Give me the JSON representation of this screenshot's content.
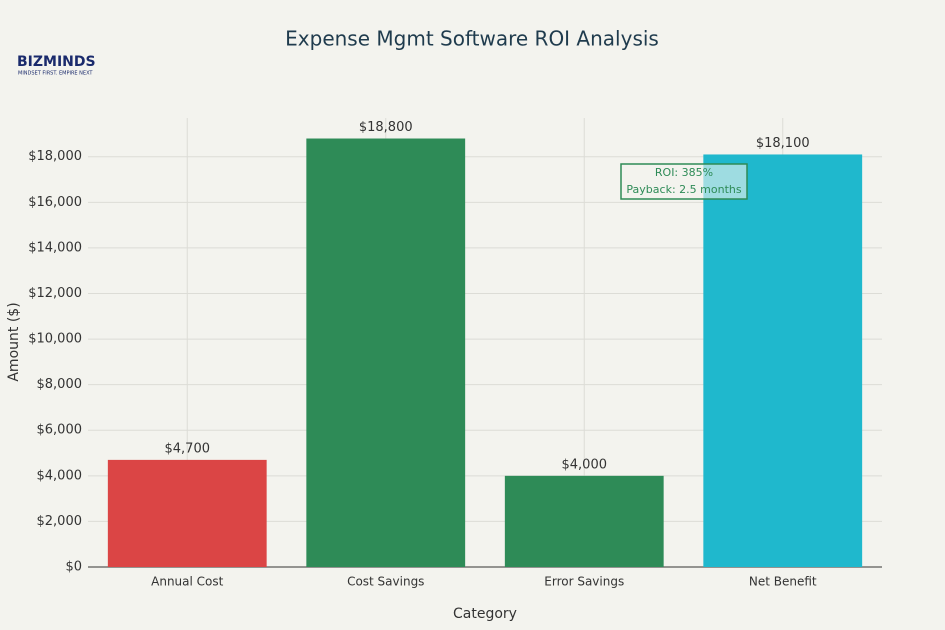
{
  "chart_data": {
    "type": "bar",
    "title": "Expense Mgmt Software ROI Analysis",
    "logo": {
      "name": "BIZMINDS",
      "tagline": "MINDSET FIRST. EMPIRE NEXT"
    },
    "categories": [
      "Annual Cost",
      "Cost Savings",
      "Error Savings",
      "Net Benefit"
    ],
    "values": [
      4700,
      18800,
      4000,
      18100
    ],
    "value_labels": [
      "$4,700",
      "$18,800",
      "$4,000",
      "$18,100"
    ],
    "colors": [
      "#db4545",
      "#2e8b57",
      "#2e8b57",
      "#1fb8cd"
    ],
    "xlabel": "Category",
    "ylabel": "Amount ($)",
    "ylim": [
      0,
      19700
    ],
    "yticks": [
      {
        "value": 0,
        "label": "$0"
      },
      {
        "value": 2000,
        "label": "$2,000"
      },
      {
        "value": 4000,
        "label": "$4,000"
      },
      {
        "value": 6000,
        "label": "$6,000"
      },
      {
        "value": 8000,
        "label": "$8,000"
      },
      {
        "value": 10000,
        "label": "$10,000"
      },
      {
        "value": 12000,
        "label": "$12,000"
      },
      {
        "value": 14000,
        "label": "$14,000"
      },
      {
        "value": 16000,
        "label": "$16,000"
      },
      {
        "value": 18000,
        "label": "$18,000"
      }
    ],
    "annotation": [
      "ROI: 385%",
      "Payback: 2.5 months"
    ],
    "grid": true
  }
}
